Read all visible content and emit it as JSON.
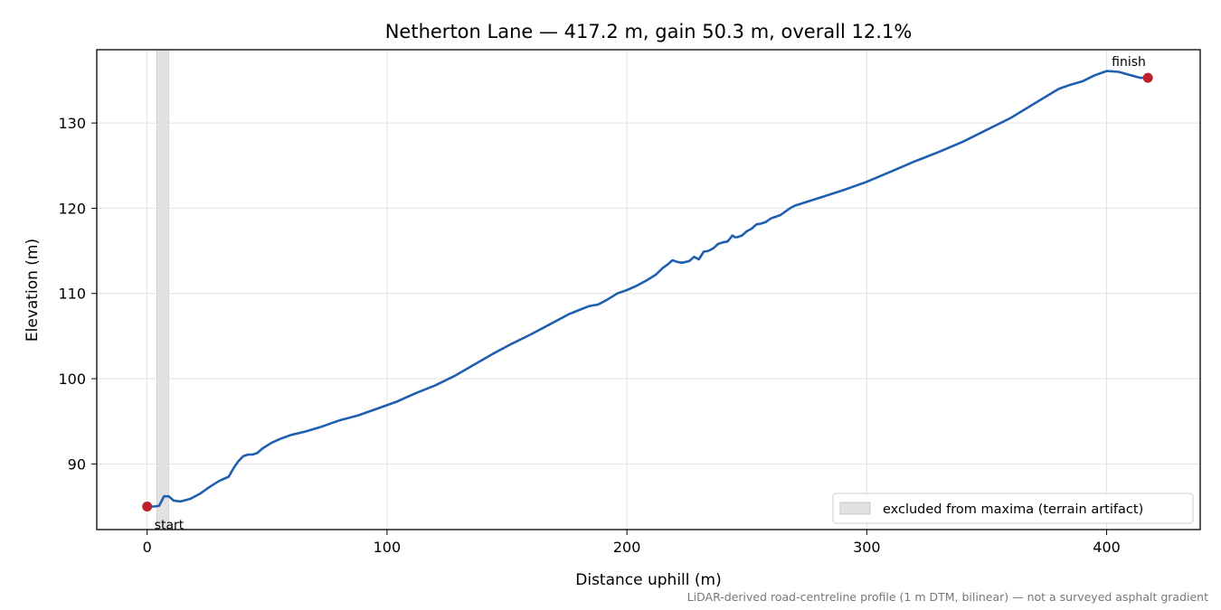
{
  "chart_data": {
    "type": "line",
    "title": "Netherton Lane — 417.2 m, gain 50.3 m, overall 12.1%",
    "xlabel": "Distance uphill (m)",
    "ylabel": "Elevation (m)",
    "xlim": [
      -21,
      439
    ],
    "ylim": [
      82.3,
      138.6
    ],
    "xticks": [
      0,
      100,
      200,
      300,
      400
    ],
    "yticks": [
      90,
      100,
      110,
      120,
      130
    ],
    "grid": true,
    "series": [
      {
        "color": "#1f5fb0",
        "x": [
          0,
          3,
          5,
          7,
          9,
          11,
          14,
          18,
          22,
          26,
          30,
          34,
          36,
          38,
          40,
          42,
          44,
          46,
          48,
          52,
          56,
          60,
          66,
          72,
          80,
          88,
          96,
          104,
          112,
          120,
          128,
          136,
          144,
          152,
          160,
          168,
          176,
          184,
          186,
          188,
          192,
          196,
          200,
          204,
          208,
          212,
          215,
          217,
          219,
          221,
          223,
          226,
          228,
          230,
          232,
          234,
          236,
          238,
          240,
          242,
          244,
          245,
          246,
          248,
          250,
          252,
          254,
          256,
          258,
          260,
          262,
          264,
          266,
          268,
          270,
          280,
          290,
          300,
          310,
          320,
          330,
          340,
          350,
          360,
          370,
          380,
          385,
          390,
          395,
          400,
          405,
          410,
          414,
          417.2
        ],
        "y": [
          85.0,
          85.0,
          85.1,
          86.2,
          86.2,
          85.7,
          85.6,
          85.9,
          86.5,
          87.3,
          88.0,
          88.5,
          89.5,
          90.3,
          90.9,
          91.1,
          91.1,
          91.3,
          91.8,
          92.5,
          93.0,
          93.4,
          93.8,
          94.3,
          95.1,
          95.7,
          96.5,
          97.3,
          98.3,
          99.2,
          100.3,
          101.6,
          102.9,
          104.1,
          105.2,
          106.4,
          107.6,
          108.5,
          108.6,
          108.7,
          109.3,
          110.0,
          110.4,
          110.9,
          111.5,
          112.2,
          113.0,
          113.4,
          113.9,
          113.7,
          113.6,
          113.8,
          114.3,
          114.0,
          114.9,
          115.0,
          115.3,
          115.8,
          116.0,
          116.1,
          116.8,
          116.6,
          116.6,
          116.8,
          117.3,
          117.6,
          118.1,
          118.2,
          118.4,
          118.8,
          119.0,
          119.2,
          119.6,
          120.0,
          120.3,
          121.2,
          122.1,
          123.1,
          124.3,
          125.5,
          126.6,
          127.8,
          129.2,
          130.6,
          132.3,
          134.0,
          134.5,
          134.9,
          135.6,
          136.1,
          136.0,
          135.6,
          135.3,
          135.3
        ]
      }
    ],
    "excluded_band": {
      "x0": 4,
      "x1": 9,
      "label": "excluded from maxima (terrain artifact)",
      "color": "#e2e2e2"
    },
    "annotations": [
      {
        "text": "start",
        "x": 0,
        "y": 85.0,
        "color": "#c0202a"
      },
      {
        "text": "finish",
        "x": 417.2,
        "y": 135.3,
        "color": "#c0202a"
      }
    ],
    "legend_position": "bottom-right",
    "footnote": "LiDAR-derived road-centreline profile (1 m DTM, bilinear) — not a surveyed asphalt gradient"
  }
}
